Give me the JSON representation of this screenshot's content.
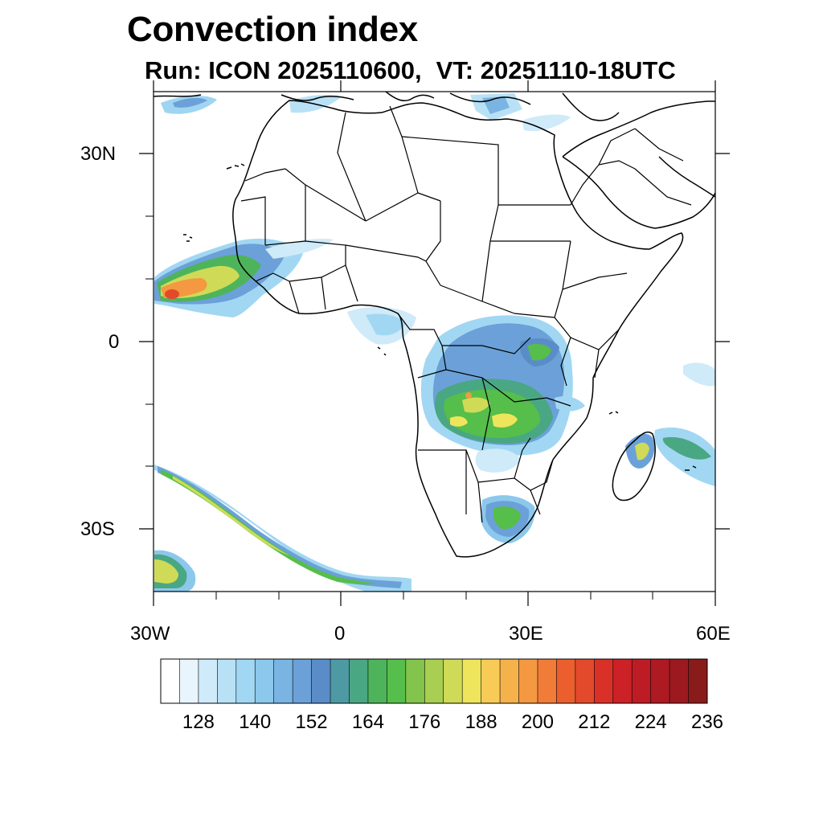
{
  "title": "Convection index",
  "subtitle": {
    "run": "Run: ICON 2025110600,",
    "valid_time": "VT: 20251110-18UTC"
  },
  "axes": {
    "lat_labels": [
      "30N",
      "0",
      "30S"
    ],
    "lon_labels": [
      "30W",
      "0",
      "30E",
      "60E"
    ]
  },
  "colorbar": {
    "colors": [
      "#ffffff",
      "#e9f5fc",
      "#cfeaf8",
      "#b9e1f6",
      "#a1d7f3",
      "#8cc8ec",
      "#7ab4e2",
      "#6ba1d8",
      "#5a8dc8",
      "#4e9aa4",
      "#4aa783",
      "#4eb45b",
      "#56be4a",
      "#83c54c",
      "#a9cf52",
      "#cfdb56",
      "#eee55c",
      "#f7cb55",
      "#f5b24b",
      "#f49842",
      "#f07c38",
      "#eb5f2f",
      "#e34a2b",
      "#d93128",
      "#cc2227",
      "#bd1c24",
      "#ad1a22",
      "#9c1a1f",
      "#8a1b1b"
    ],
    "labels": [
      "128",
      "140",
      "152",
      "164",
      "176",
      "188",
      "200",
      "212",
      "224",
      "236"
    ]
  }
}
